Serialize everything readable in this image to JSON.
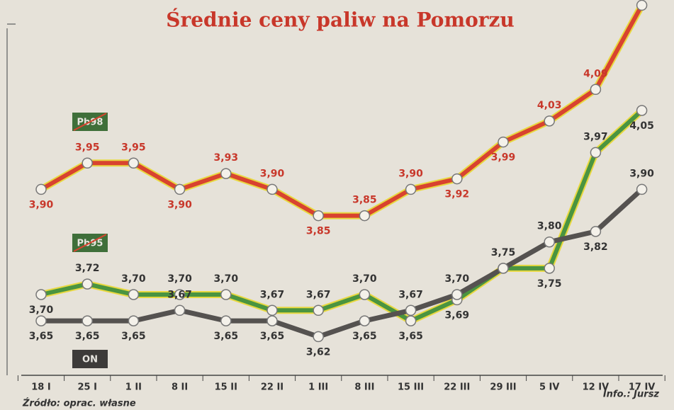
{
  "chart_data": {
    "type": "line",
    "title": "Średnie ceny paliw na Pomorzu",
    "source": "Źródło: oprac. własne",
    "credit": "Info.: Jursz",
    "categories": [
      "18 I",
      "25 I",
      "1 II",
      "8 II",
      "15 II",
      "22 II",
      "1 III",
      "8 III",
      "15 III",
      "22 III",
      "29 III",
      "5 IV",
      "12 IV",
      "17 IV"
    ],
    "ylim": [
      3.56,
      4.26
    ],
    "series": [
      {
        "name": "Pb98",
        "color": "#d8432f",
        "values": [
          3.9,
          3.95,
          3.95,
          3.9,
          3.93,
          3.9,
          3.85,
          3.85,
          3.9,
          3.92,
          3.99,
          4.03,
          4.09,
          4.25
        ],
        "value_labels": [
          "3,90",
          "3,95",
          "3,95",
          "3,90",
          "3,93",
          "3,90",
          "3,85",
          "3,85",
          "3,90",
          "3,92",
          "3,99",
          "4,03",
          "4,09",
          null
        ]
      },
      {
        "name": "Pb95",
        "color": "#4a9440",
        "values": [
          3.7,
          3.72,
          3.7,
          3.7,
          3.7,
          3.67,
          3.67,
          3.7,
          3.65,
          3.69,
          3.75,
          3.75,
          3.97,
          4.05
        ],
        "value_labels": [
          "3,70",
          "3,72",
          "3,70",
          "3,70",
          "3,70",
          "3,67",
          "3,67",
          "3,70",
          "3,65",
          "3,69",
          "3,75",
          "3,75",
          "3,97",
          "4,05"
        ]
      },
      {
        "name": "ON",
        "color": "#555250",
        "values": [
          3.65,
          3.65,
          3.65,
          3.67,
          3.65,
          3.65,
          3.62,
          3.65,
          3.67,
          3.7,
          3.75,
          3.8,
          3.82,
          3.9
        ],
        "value_labels": [
          "3,65",
          "3,65",
          "3,65",
          "3,67",
          "3,65",
          "3,65",
          "3,62",
          "3,65",
          "3,67",
          "3,70",
          null,
          "3,80",
          "3,82",
          "3,90"
        ]
      }
    ]
  }
}
